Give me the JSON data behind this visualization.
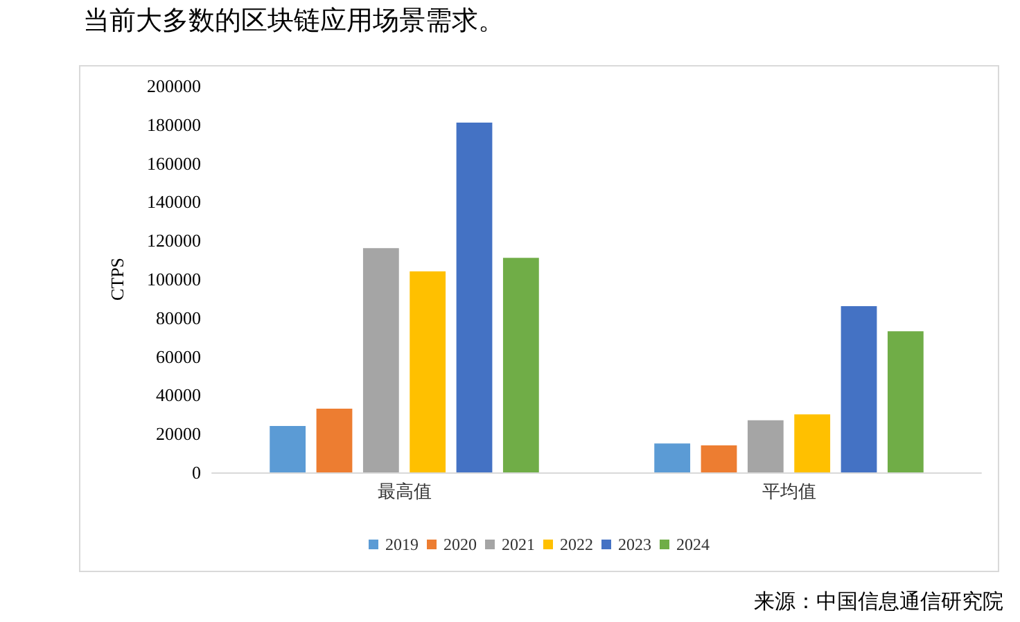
{
  "chart_data": {
    "type": "bar",
    "title": "当前大多数的区块链应用场景需求。",
    "ylabel": "CTPS",
    "categories": [
      "最高值",
      "平均值"
    ],
    "series": [
      {
        "name": "2019",
        "color": "#5b9bd5",
        "values": [
          24000,
          15000
        ]
      },
      {
        "name": "2020",
        "color": "#ed7d31",
        "values": [
          33000,
          14000
        ]
      },
      {
        "name": "2021",
        "color": "#a5a5a5",
        "values": [
          116000,
          27000
        ]
      },
      {
        "name": "2022",
        "color": "#ffc000",
        "values": [
          104000,
          30000
        ]
      },
      {
        "name": "2023",
        "color": "#4472c4",
        "values": [
          181000,
          86000
        ]
      },
      {
        "name": "2024",
        "color": "#70ad47",
        "values": [
          111000,
          73000
        ]
      }
    ],
    "ylim": [
      0,
      200000
    ],
    "yticks": [
      0,
      20000,
      40000,
      60000,
      80000,
      100000,
      120000,
      140000,
      160000,
      180000,
      200000
    ],
    "grid": false,
    "legend": "bottom",
    "annotations": [
      "来源：中国信息通信研究院"
    ]
  }
}
